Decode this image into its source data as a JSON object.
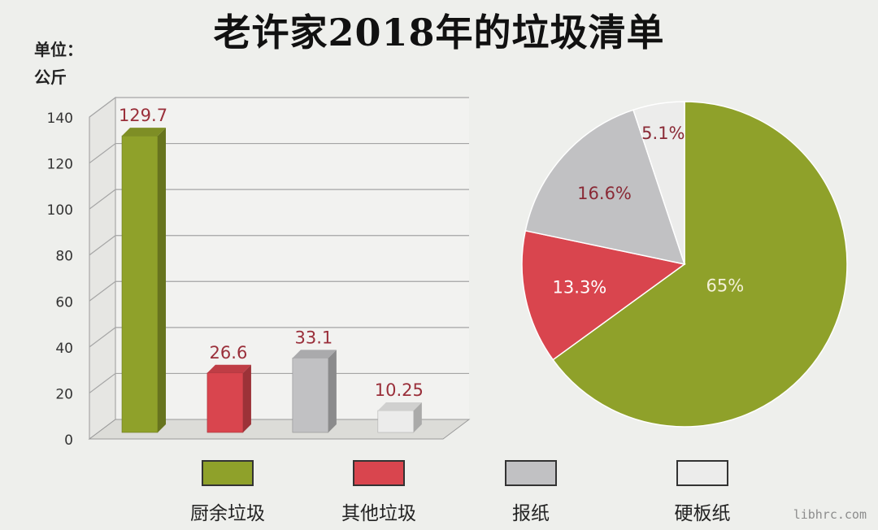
{
  "title": "老许家2018年的垃圾清单",
  "unit_line1": "单位：",
  "unit_line2": "公斤",
  "watermark": "libhrc.com",
  "legend": [
    {
      "label": "厨余垃圾",
      "color": "#8fa12a"
    },
    {
      "label": "其他垃圾",
      "color": "#d9454e"
    },
    {
      "label": "报纸",
      "color": "#c1c1c3"
    },
    {
      "label": "硬板纸",
      "color": "#ececeb"
    }
  ],
  "chart_data": [
    {
      "type": "bar",
      "categories": [
        "厨余垃圾",
        "其他垃圾",
        "报纸",
        "硬板纸"
      ],
      "values": [
        129.7,
        26.6,
        33.1,
        10.25
      ],
      "data_labels": [
        "129.7",
        "26.6",
        "33.1",
        "10.25"
      ],
      "ylabel": "单位：公斤",
      "ylim": [
        0,
        140
      ],
      "yticks": [
        "0",
        "20",
        "40",
        "60",
        "80",
        "100",
        "120",
        "140"
      ],
      "grid": true,
      "colors": [
        "#8fa12a",
        "#d9454e",
        "#c1c1c3",
        "#ececeb"
      ]
    },
    {
      "type": "pie",
      "categories": [
        "厨余垃圾",
        "其他垃圾",
        "报纸",
        "硬板纸"
      ],
      "values": [
        65,
        13.3,
        16.6,
        5.1
      ],
      "data_labels": [
        "65%",
        "13.3%",
        "16.6%",
        "5.1%"
      ],
      "colors": [
        "#8fa12a",
        "#d9454e",
        "#c1c1c3",
        "#ececeb"
      ]
    }
  ]
}
